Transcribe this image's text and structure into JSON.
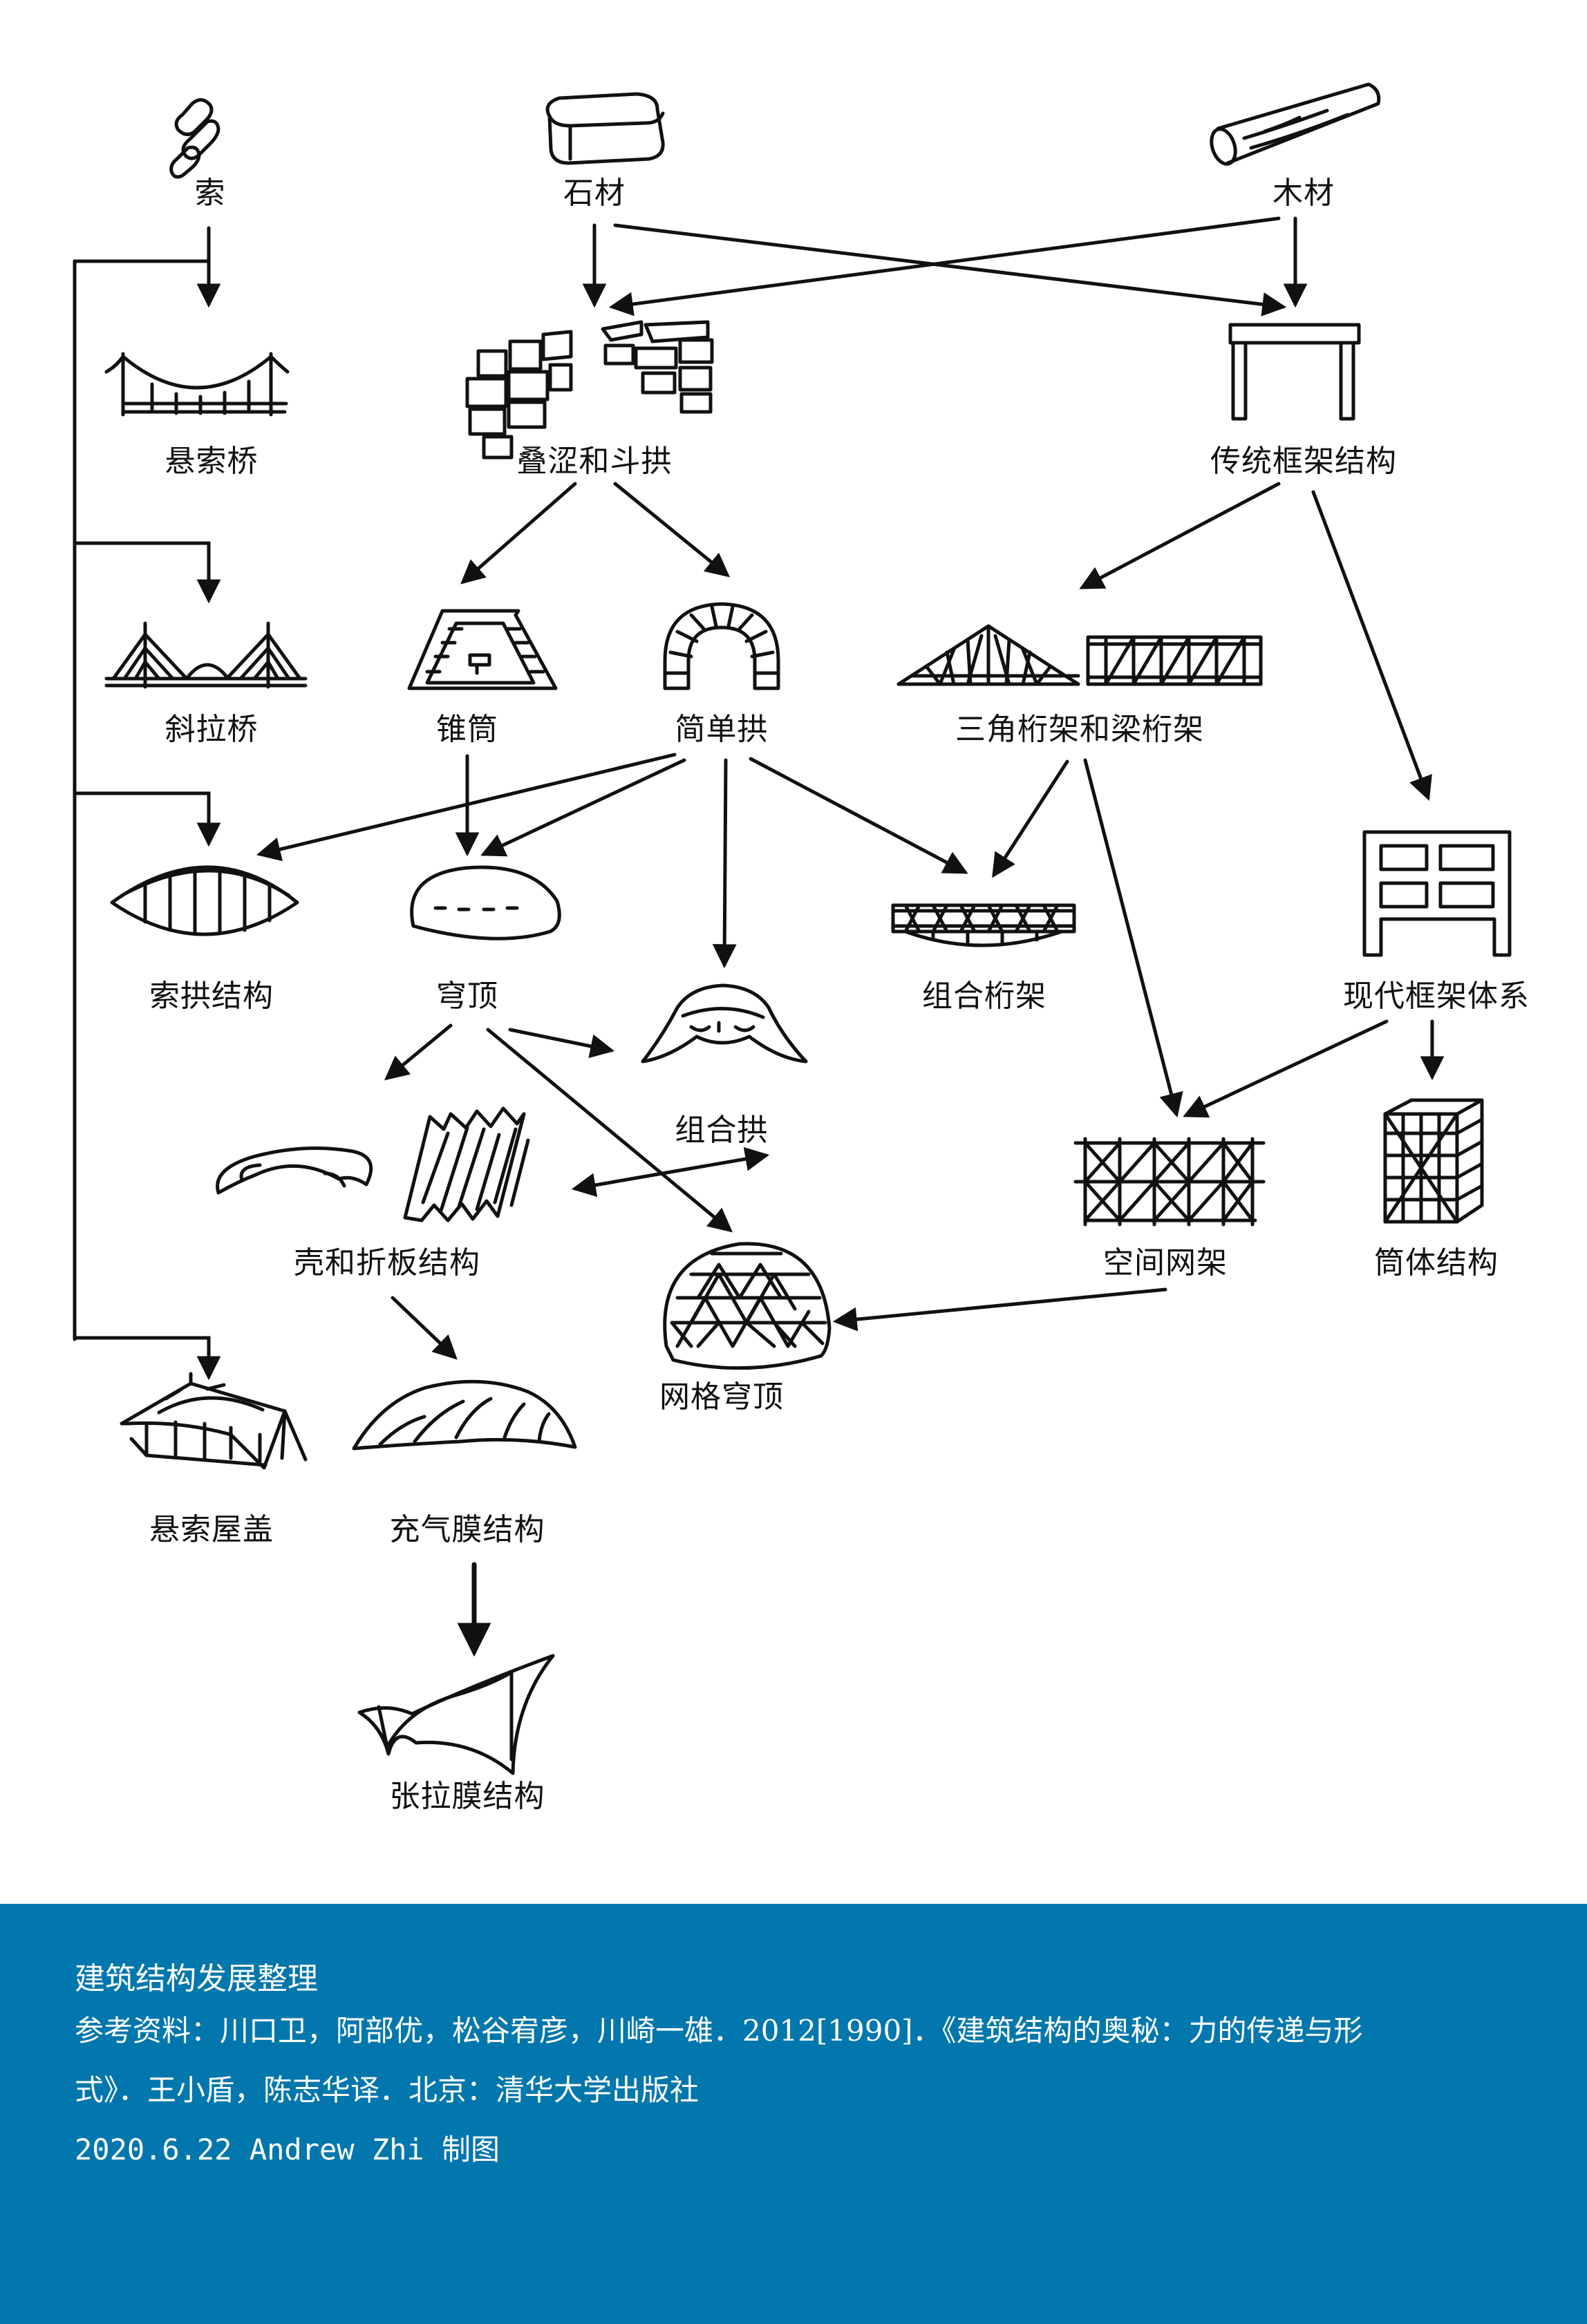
{
  "nodes": {
    "suo": "索",
    "shicai": "石材",
    "mucai": "木材",
    "xuansuoqiao": "悬索桥",
    "diese": "叠涩和斗拱",
    "chuantong": "传统框架结构",
    "xielaqiao": "斜拉桥",
    "zhuitong": "锥筒",
    "jiandangong": "简单拱",
    "sanjiao": "三角桁架和梁桁架",
    "suogong": "索拱结构",
    "qiongding": "穹顶",
    "zuhehengjia": "组合桁架",
    "xiandai": "现代框架体系",
    "zuhegong": "组合拱",
    "kehe": "壳和折板结构",
    "kongjian": "空间网架",
    "tongti": "筒体结构",
    "wangge": "网格穹顶",
    "xuansuowu": "悬索屋盖",
    "chongqi": "充气膜结构",
    "zhangla": "张拉膜结构"
  },
  "icons": [
    "chain-icon",
    "stone-block-icon",
    "log-icon",
    "suspension-bridge-icon",
    "corbel-bracket-icon",
    "post-lintel-frame-icon",
    "cable-stayed-bridge-icon",
    "corbelled-cone-icon",
    "masonry-arch-icon",
    "truss-icon",
    "cable-arch-icon",
    "dome-icon",
    "composite-truss-icon",
    "modern-frame-icon",
    "composite-arch-icon",
    "shell-folded-plate-icon",
    "space-frame-icon",
    "tube-structure-icon",
    "geodesic-dome-icon",
    "cable-roof-icon",
    "inflatable-membrane-icon",
    "tensile-membrane-icon"
  ],
  "footer": {
    "title": "建筑结构发展整理",
    "reference_line1": "参考资料：川口卫，阿部优，松谷宥彦，川崎一雄．2012[1990]．《建筑结构的奥秘：力的传递与形",
    "reference_line2": "式》．王小盾，陈志华译．北京：清华大学出版社",
    "credit": "2020.6.22 Andrew Zhi 制图"
  },
  "colors": {
    "ink": "#111111",
    "footer_background": "#0277ad",
    "footer_text": "#ffffff"
  }
}
